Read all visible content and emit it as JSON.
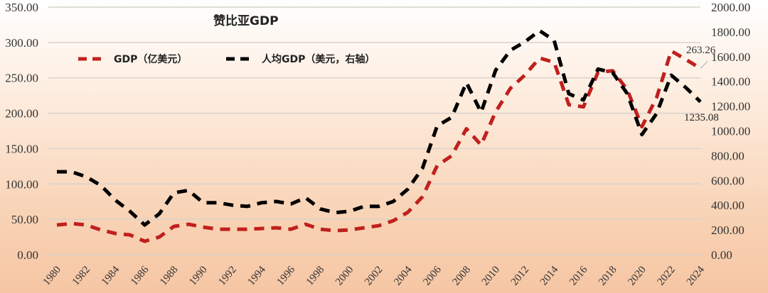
{
  "chart_data": {
    "type": "line",
    "title": "赞比亚GDP",
    "x": [
      1980,
      1981,
      1982,
      1983,
      1984,
      1985,
      1986,
      1987,
      1988,
      1989,
      1990,
      1991,
      1992,
      1993,
      1994,
      1995,
      1996,
      1997,
      1998,
      1999,
      2000,
      2001,
      2002,
      2003,
      2004,
      2005,
      2006,
      2007,
      2008,
      2009,
      2010,
      2011,
      2012,
      2013,
      2014,
      2015,
      2016,
      2017,
      2018,
      2019,
      2020,
      2021,
      2022,
      2023,
      2024
    ],
    "x_tick_labels": [
      "1980",
      "1982",
      "1984",
      "1986",
      "1988",
      "1990",
      "1992",
      "1994",
      "1996",
      "1998",
      "2000",
      "2002",
      "2004",
      "2006",
      "2008",
      "2010",
      "2012",
      "2014",
      "2016",
      "2018",
      "2020",
      "2022",
      "2024"
    ],
    "y_left": {
      "range": [
        0,
        350
      ],
      "ticks": [
        "0.00",
        "50.00",
        "100.00",
        "150.00",
        "200.00",
        "250.00",
        "300.00",
        "350.00"
      ]
    },
    "y_right": {
      "range": [
        0,
        2000
      ],
      "ticks": [
        "0.00",
        "200.00",
        "400.00",
        "600.00",
        "800.00",
        "1000.00",
        "1200.00",
        "1400.00",
        "1600.00",
        "1800.00",
        "2000.00"
      ]
    },
    "grid": true,
    "legend_position": "top-left",
    "series": [
      {
        "name": "GDP（亿美元）",
        "axis": "left",
        "color": "#c0201e",
        "style": "dashed",
        "values": [
          42,
          44,
          42,
          35,
          30,
          28,
          19,
          25,
          40,
          43,
          39,
          36,
          36,
          36,
          37,
          38,
          36,
          43,
          36,
          34,
          35,
          38,
          41,
          48,
          60,
          82,
          126,
          140,
          178,
          155,
          202,
          235,
          254,
          278,
          272,
          212,
          209,
          258,
          260,
          233,
          181,
          222,
          288,
          276,
          263.26
        ]
      },
      {
        "name": "人均GDP（美元，右轴）",
        "axis": "right",
        "color": "#000000",
        "style": "dashed",
        "values": [
          670,
          670,
          630,
          560,
          440,
          350,
          240,
          330,
          500,
          520,
          420,
          420,
          400,
          390,
          420,
          430,
          410,
          460,
          370,
          340,
          350,
          390,
          390,
          430,
          530,
          700,
          1040,
          1110,
          1390,
          1150,
          1490,
          1650,
          1720,
          1810,
          1730,
          1300,
          1250,
          1500,
          1470,
          1300,
          970,
          1140,
          1450,
          1350,
          1235.08
        ]
      }
    ],
    "annotations": [
      "263.26",
      "1235.08"
    ]
  }
}
